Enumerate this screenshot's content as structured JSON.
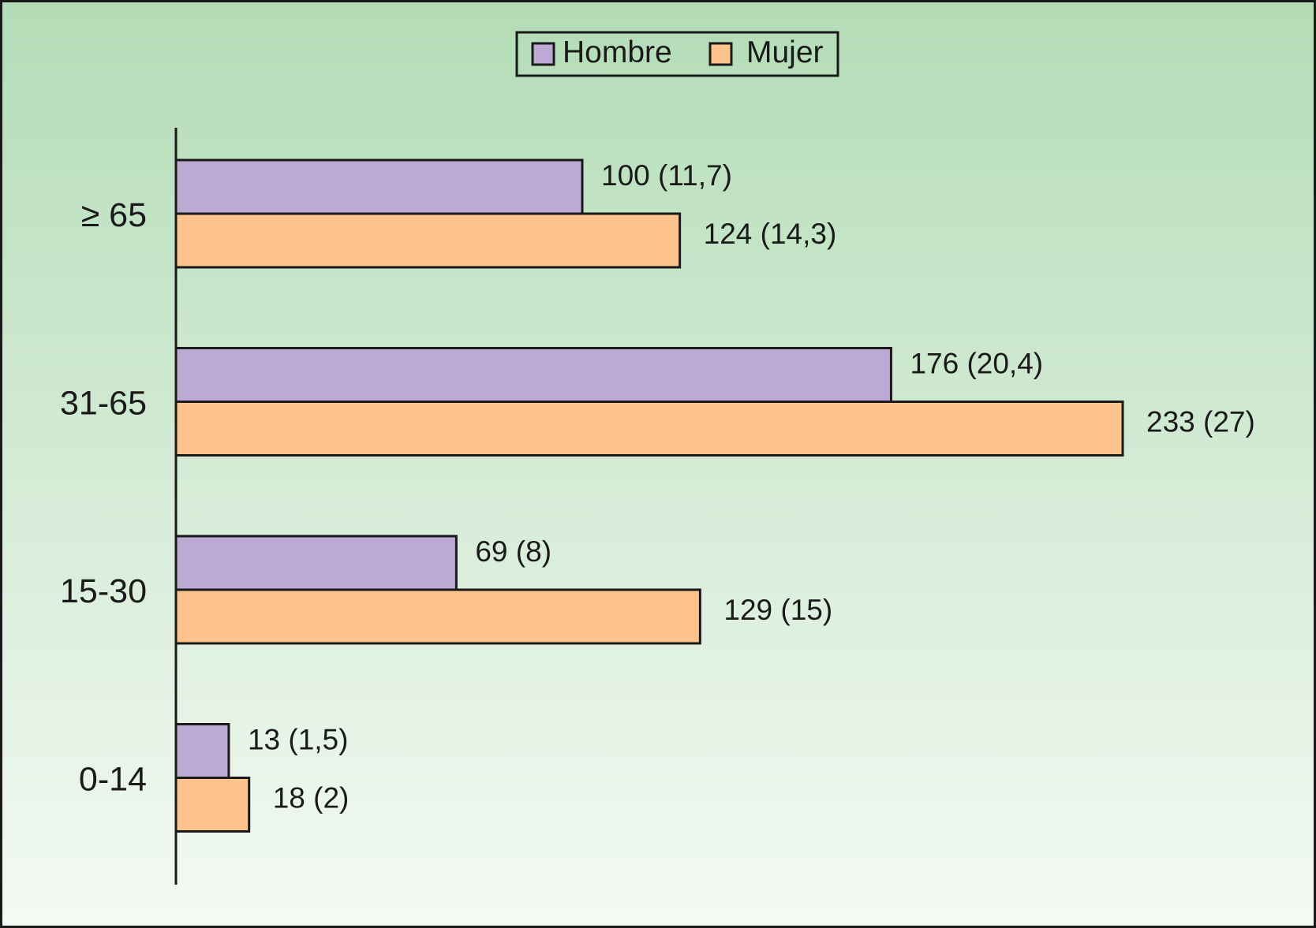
{
  "chart_data": {
    "type": "bar",
    "orientation": "horizontal",
    "categories": [
      "≥ 65",
      "31-65",
      "15-30",
      "0-14"
    ],
    "series": [
      {
        "name": "Hombre",
        "color": "#bcaad4",
        "values": [
          100,
          176,
          69,
          13
        ],
        "labels": [
          "100 (11,7)",
          "176 (20,4)",
          "69 (8)",
          "13 (1,5)"
        ]
      },
      {
        "name": "Mujer",
        "color": "#fcc48c",
        "values": [
          124,
          233,
          129,
          18
        ],
        "labels": [
          "124 (14,3)",
          "233 (27)",
          "129 (15)",
          "18 (2)"
        ]
      }
    ],
    "xlim": [
      0,
      233
    ],
    "grid": false,
    "legend_position": "top-center",
    "background": {
      "top": "#b3dcb6",
      "bottom": "#f4faf4"
    }
  }
}
